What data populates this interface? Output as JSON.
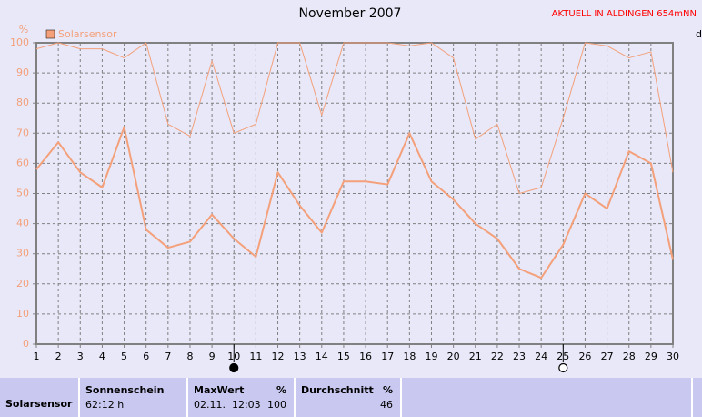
{
  "chart_data": {
    "type": "line",
    "title": "November 2007",
    "subtitle": "AKTUELL IN ALDINGEN 654mNN",
    "ylabel": "%",
    "y2label": "d",
    "x": [
      1,
      2,
      3,
      4,
      5,
      6,
      7,
      8,
      9,
      10,
      11,
      12,
      13,
      14,
      15,
      16,
      17,
      18,
      19,
      20,
      21,
      22,
      23,
      24,
      25,
      26,
      27,
      28,
      29,
      30
    ],
    "xlim": [
      1,
      30
    ],
    "xticks": [
      1,
      2,
      3,
      4,
      5,
      6,
      7,
      8,
      9,
      10,
      11,
      12,
      13,
      14,
      15,
      16,
      17,
      18,
      19,
      20,
      21,
      22,
      23,
      24,
      25,
      26,
      27,
      28,
      29,
      30
    ],
    "ylim": [
      0,
      100
    ],
    "yticks": [
      0,
      10,
      20,
      30,
      40,
      50,
      60,
      70,
      80,
      90,
      100
    ],
    "grid": true,
    "series": [
      {
        "name": "Solarsensor",
        "color": "#f4a07a",
        "line_width": 2,
        "values": [
          58,
          67,
          57,
          52,
          72,
          38,
          32,
          34,
          43,
          35,
          29,
          57,
          46,
          37,
          54,
          54,
          53,
          70,
          54,
          48,
          40,
          35,
          25,
          22,
          33,
          50,
          45,
          64,
          60,
          28
        ]
      },
      {
        "color": "#f4a07a",
        "line_width": 1,
        "values": [
          98,
          100,
          98,
          98,
          95,
          100,
          73,
          69,
          94,
          70,
          73,
          100,
          100,
          76,
          100,
          100,
          100,
          99,
          100,
          95,
          68,
          73,
          50,
          52,
          75,
          100,
          99,
          95,
          97,
          57
        ]
      }
    ],
    "moon_phases": [
      {
        "x": 10,
        "filled": true
      },
      {
        "x": 25,
        "filled": false
      }
    ]
  },
  "summary": {
    "label": "Solarsensor",
    "sunshine_header": "Sonnenschein",
    "sunshine": "62:12 h",
    "max_header": "MaxWert",
    "max_unit": "%",
    "max_time": "02.11.  12:03",
    "max_value": "100",
    "avg_header": "Durchschnitt",
    "avg_unit": "%",
    "avg_value": "46"
  }
}
